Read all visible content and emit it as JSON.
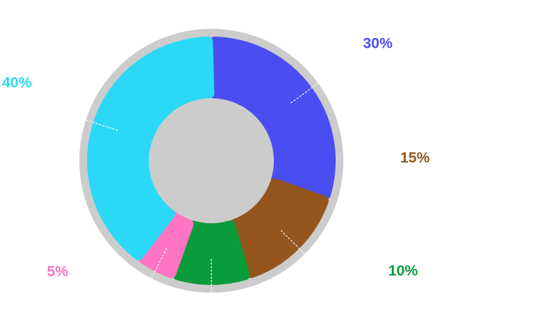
{
  "chart_data": {
    "type": "pie",
    "variant": "donut",
    "values": [
      30,
      15,
      10,
      5,
      40
    ],
    "labels": [
      "30%",
      "15%",
      "10%",
      "5%",
      "40%"
    ],
    "colors": [
      "#4a4ef2",
      "#94561d",
      "#0a9c3a",
      "#ff74c3",
      "#2bd9f7"
    ],
    "track_color": "#cccccc",
    "legend": "none"
  }
}
